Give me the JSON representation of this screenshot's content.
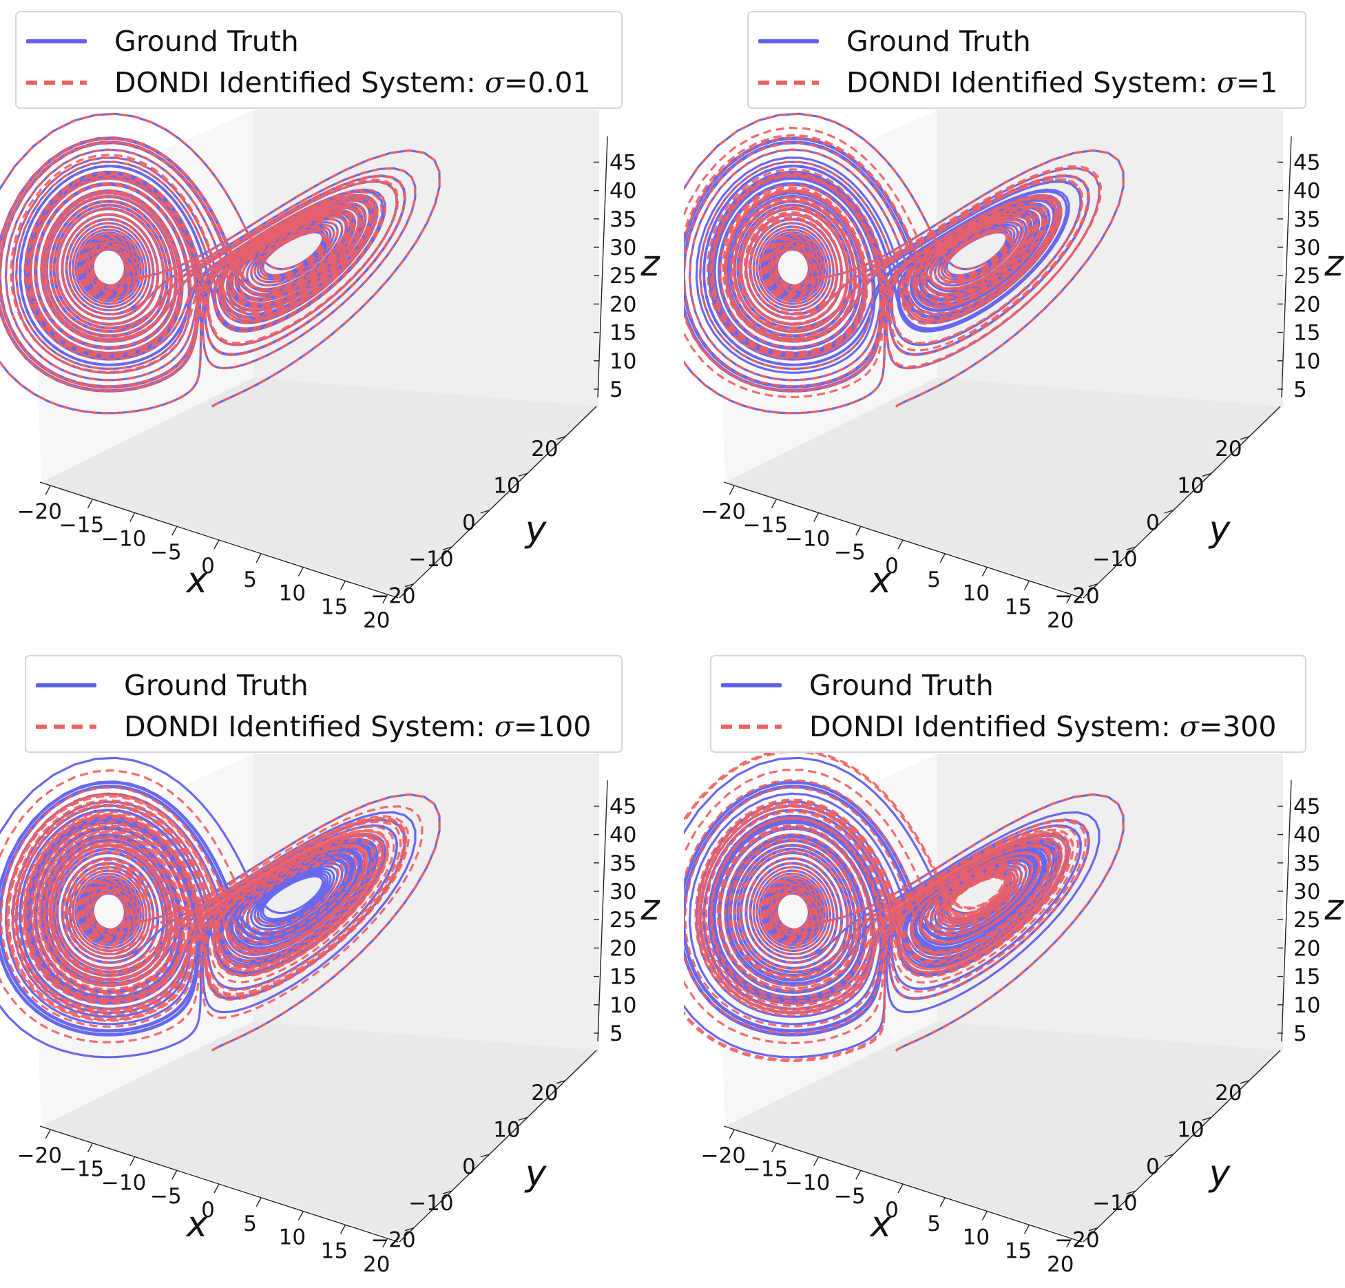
{
  "legend_labels": {
    "ground_truth": "Ground Truth",
    "identified_prefix": "DONDI Identified System: ",
    "sigma_symbol": "σ"
  },
  "colors": {
    "ground_truth": "#6060ee",
    "identified": "#f06060",
    "pane_light": "#f7f7f7",
    "pane_mid": "#efefef",
    "pane_dark": "#e9e9e9"
  },
  "chart_data": [
    {
      "type": "line3d",
      "series": [
        {
          "name": "Ground Truth",
          "style": "solid"
        },
        {
          "name": "DONDI Identified System: σ=0.01",
          "style": "dashed"
        }
      ],
      "sigma": "=0.01",
      "match_fraction": 0.95,
      "x_label": "x",
      "y_label": "y",
      "z_label": "z",
      "x_ticks": [
        "−20",
        "−15",
        "−10",
        "−5",
        "0",
        "5",
        "10",
        "15",
        "20"
      ],
      "y_ticks": [
        "−20",
        "−10",
        "0",
        "10",
        "20"
      ],
      "z_ticks": [
        "5",
        "10",
        "15",
        "20",
        "25",
        "30",
        "35",
        "40",
        "45"
      ],
      "xlim": [
        -20,
        20
      ],
      "ylim": [
        -25,
        25
      ],
      "zlim": [
        0,
        48
      ],
      "grid": false,
      "legend": "top"
    },
    {
      "type": "line3d",
      "series": [
        {
          "name": "Ground Truth",
          "style": "solid"
        },
        {
          "name": "DONDI Identified System: σ=1",
          "style": "dashed"
        }
      ],
      "sigma": "=1",
      "match_fraction": 0.6,
      "x_label": "x",
      "y_label": "y",
      "z_label": "z",
      "x_ticks": [
        "−20",
        "−15",
        "−10",
        "−5",
        "0",
        "5",
        "10",
        "15",
        "20"
      ],
      "y_ticks": [
        "−20",
        "−10",
        "0",
        "10",
        "20"
      ],
      "z_ticks": [
        "5",
        "10",
        "15",
        "20",
        "25",
        "30",
        "35",
        "40",
        "45"
      ],
      "xlim": [
        -20,
        20
      ],
      "ylim": [
        -25,
        25
      ],
      "zlim": [
        0,
        48
      ],
      "grid": false,
      "legend": "top"
    },
    {
      "type": "line3d",
      "series": [
        {
          "name": "Ground Truth",
          "style": "solid"
        },
        {
          "name": "DONDI Identified System: σ=100",
          "style": "dashed"
        }
      ],
      "sigma": "=100",
      "match_fraction": 0.2,
      "x_label": "x",
      "y_label": "y",
      "z_label": "z",
      "x_ticks": [
        "−20",
        "−15",
        "−10",
        "−5",
        "0",
        "5",
        "10",
        "15",
        "20"
      ],
      "y_ticks": [
        "−20",
        "−10",
        "0",
        "10",
        "20"
      ],
      "z_ticks": [
        "5",
        "10",
        "15",
        "20",
        "25",
        "30",
        "35",
        "40",
        "45"
      ],
      "xlim": [
        -20,
        20
      ],
      "ylim": [
        -25,
        25
      ],
      "zlim": [
        0,
        48
      ],
      "grid": false,
      "legend": "top"
    },
    {
      "type": "line3d",
      "series": [
        {
          "name": "Ground Truth",
          "style": "solid"
        },
        {
          "name": "DONDI Identified System: σ=300",
          "style": "dashed"
        }
      ],
      "sigma": "=300",
      "match_fraction": 0.25,
      "x_label": "x",
      "y_label": "y",
      "z_label": "z",
      "x_ticks": [
        "−20",
        "−15",
        "−10",
        "−5",
        "0",
        "5",
        "10",
        "15",
        "20"
      ],
      "y_ticks": [
        "−20",
        "−10",
        "0",
        "10",
        "20"
      ],
      "z_ticks": [
        "5",
        "10",
        "15",
        "20",
        "25",
        "30",
        "35",
        "40",
        "45"
      ],
      "xlim": [
        -20,
        20
      ],
      "ylim": [
        -25,
        25
      ],
      "zlim": [
        0,
        48
      ],
      "grid": false,
      "legend": "top"
    }
  ]
}
